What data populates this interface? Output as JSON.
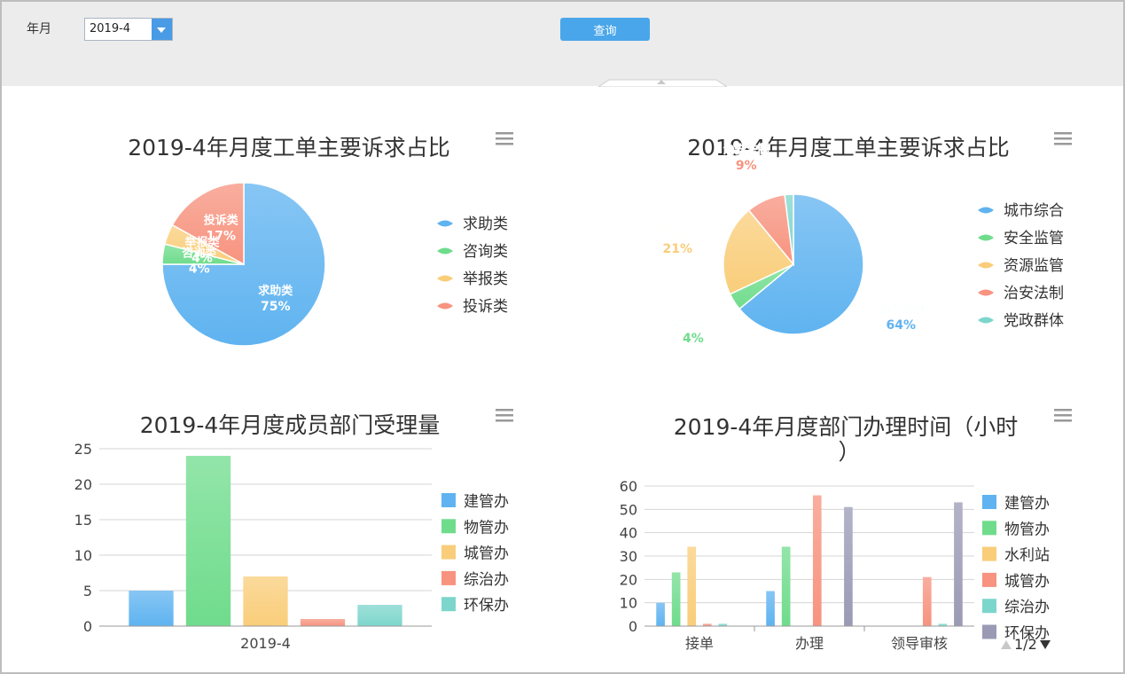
{
  "filter": {
    "label": "年月",
    "value": "2019-4",
    "query_label": "查询"
  },
  "chart_data": [
    {
      "type": "pie",
      "title": "2019-4年月度工单主要诉求占比",
      "labels": [
        "求助类",
        "咨询类",
        "举报类",
        "投诉类"
      ],
      "values": [
        75,
        4,
        4,
        17
      ],
      "value_labels": [
        "75%",
        "4%",
        "4%",
        "17%"
      ],
      "colors": [
        "#5fb3f0",
        "#6fdc8c",
        "#f9cd7a",
        "#f7937f"
      ],
      "legend": "right"
    },
    {
      "type": "pie",
      "title": "2019-4年月度工单主要诉求占比",
      "labels": [
        "城市综合",
        "安全监管",
        "资源监管",
        "治安法制",
        "党政群体"
      ],
      "values": [
        64,
        4,
        21,
        9,
        2
      ],
      "value_labels": [
        "64%",
        "4%",
        "21%",
        "9%",
        ""
      ],
      "colors": [
        "#5fb3f0",
        "#6fdc8c",
        "#f9cd7a",
        "#f7937f",
        "#7dd6cc"
      ],
      "legend": "right"
    },
    {
      "type": "bar",
      "title": "2019-4年月度成员部门受理量",
      "categories": [
        "2019-4"
      ],
      "series": [
        {
          "name": "建管办",
          "values": [
            5
          ],
          "color": "#5fb3f0"
        },
        {
          "name": "物管办",
          "values": [
            24
          ],
          "color": "#6fdc8c"
        },
        {
          "name": "城管办",
          "values": [
            7
          ],
          "color": "#f9cd7a"
        },
        {
          "name": "综治办",
          "values": [
            1
          ],
          "color": "#f7937f"
        },
        {
          "name": "环保办",
          "values": [
            3
          ],
          "color": "#7dd6cc"
        }
      ],
      "ylim": [
        0,
        25
      ],
      "yticks": [
        0,
        5,
        10,
        15,
        20,
        25
      ],
      "grid": true,
      "legend": "right"
    },
    {
      "type": "bar",
      "title": "2019-4年月度部门办理时间（小时）",
      "categories": [
        "接单",
        "办理",
        "领导审核"
      ],
      "series": [
        {
          "name": "建管办",
          "values": [
            10,
            15,
            0
          ],
          "color": "#5fb3f0"
        },
        {
          "name": "物管办",
          "values": [
            23,
            34,
            0
          ],
          "color": "#6fdc8c"
        },
        {
          "name": "水利站",
          "values": [
            34,
            0,
            0
          ],
          "color": "#f9cd7a"
        },
        {
          "name": "城管办",
          "values": [
            1,
            56,
            21
          ],
          "color": "#f7937f"
        },
        {
          "name": "综治办",
          "values": [
            1,
            0,
            1
          ],
          "color": "#7dd6cc"
        },
        {
          "name": "环保办",
          "values": [
            0,
            51,
            53
          ],
          "color": "#9a9ab5"
        }
      ],
      "ylim": [
        0,
        60
      ],
      "yticks": [
        0,
        10,
        20,
        30,
        40,
        50,
        60
      ],
      "grid": true,
      "legend": "right",
      "legend_page": "1/2"
    }
  ]
}
